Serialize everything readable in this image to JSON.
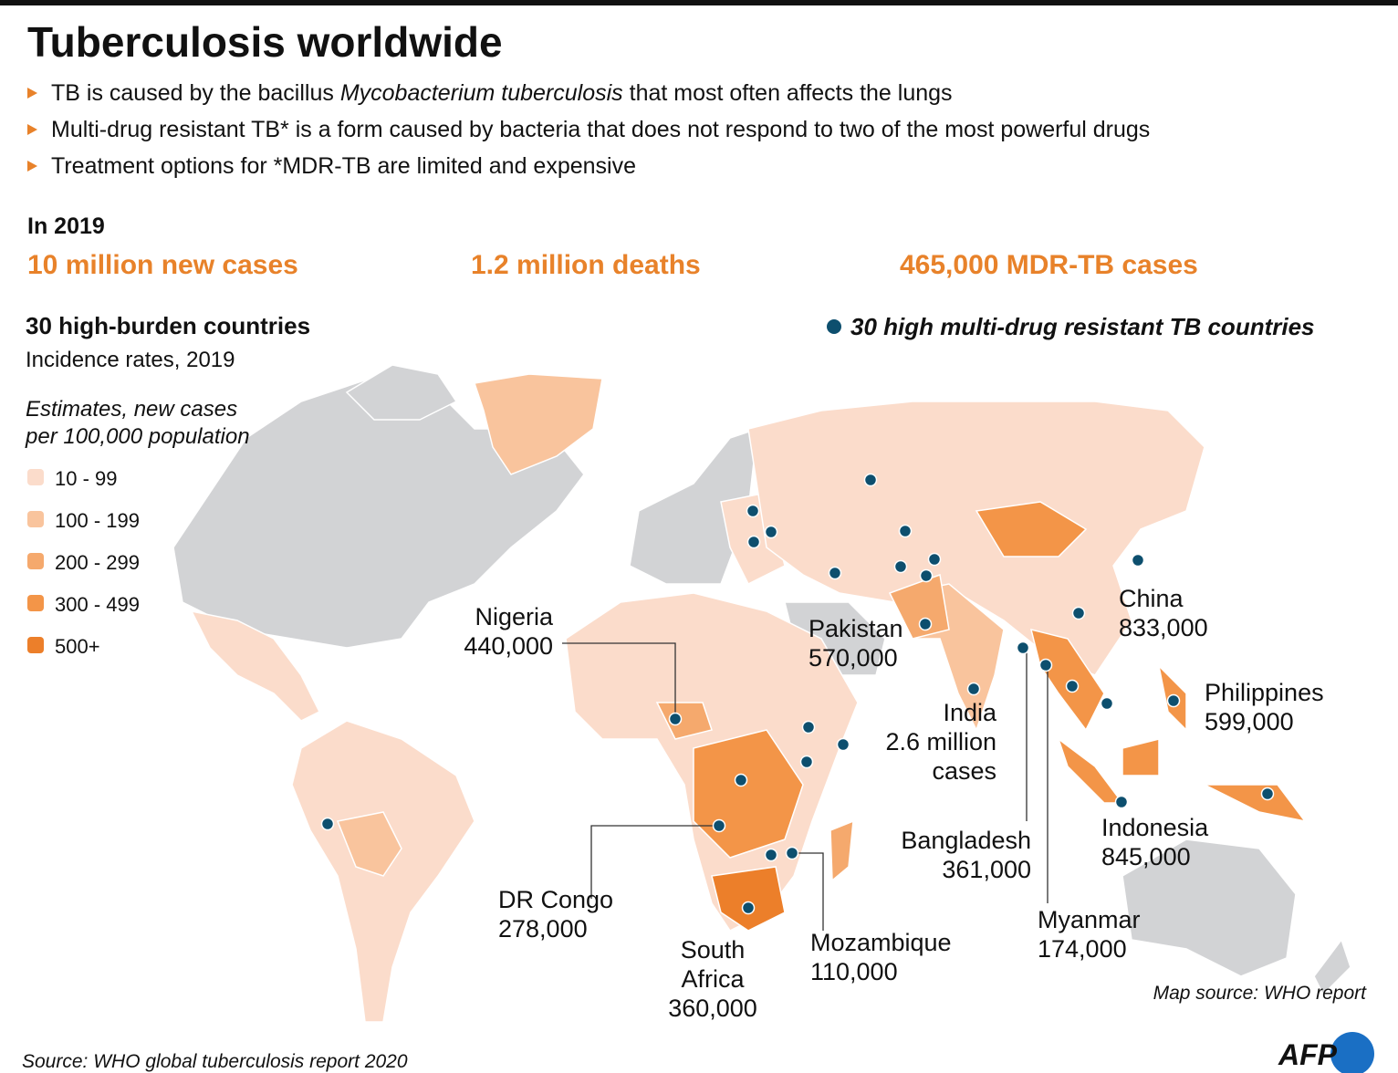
{
  "header": {
    "title": "Tuberculosis worldwide",
    "bullets": [
      {
        "before": "TB is caused by the bacillus ",
        "italic": "Mycobacterium tuberculosis",
        "after": " that most often affects the lungs"
      },
      {
        "before": "Multi-drug resistant TB* is a form caused by bacteria that does not respond to two of the most powerful drugs"
      },
      {
        "before": "Treatment options for *MDR-TB are limited and expensive"
      }
    ]
  },
  "stats": {
    "heading": "In 2019",
    "items": [
      "10 million new cases",
      "1.2 million deaths",
      "465,000 MDR-TB cases"
    ],
    "color": "#e8822a"
  },
  "legend": {
    "title": "30 high-burden countries",
    "subtitle": "Incidence rates,  2019",
    "note": [
      "Estimates, new cases",
      "per 100,000 population"
    ],
    "items": [
      {
        "label": "10 - 99",
        "color": "#fbdccb"
      },
      {
        "label": "100 - 199",
        "color": "#f9c49d"
      },
      {
        "label": "200 - 299",
        "color": "#f5a96d"
      },
      {
        "label": "300 - 499",
        "color": "#f39548"
      },
      {
        "label": "500+",
        "color": "#ec7f2a"
      }
    ]
  },
  "mdr_legend": {
    "label": "30 high multi-drug resistant TB countries",
    "color": "#0d4f6e"
  },
  "labels": [
    {
      "lines": [
        "Nigeria",
        "440,000"
      ]
    },
    {
      "lines": [
        "Pakistan",
        "570,000"
      ]
    },
    {
      "lines": [
        "China",
        "833,000"
      ]
    },
    {
      "lines": [
        "Philippines",
        "599,000"
      ]
    },
    {
      "lines": [
        "India",
        "2.6 million",
        "cases"
      ]
    },
    {
      "lines": [
        "Bangladesh",
        "361,000"
      ]
    },
    {
      "lines": [
        "Indonesia",
        "845,000"
      ]
    },
    {
      "lines": [
        "Myanmar",
        "174,000"
      ]
    },
    {
      "lines": [
        "DR Congo",
        "278,000"
      ]
    },
    {
      "lines": [
        "South",
        "Africa",
        "360,000"
      ]
    },
    {
      "lines": [
        "Mozambique",
        "110,000"
      ]
    }
  ],
  "map_source": "Map source: WHO report",
  "source": "Source: WHO global tuberculosis report 2020",
  "logo": "AFP"
}
